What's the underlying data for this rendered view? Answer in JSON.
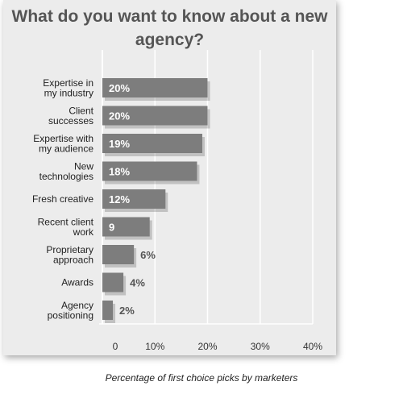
{
  "chart_data": {
    "type": "bar",
    "orientation": "horizontal",
    "title": "What do you want to know about a new agency?",
    "caption": "Percentage of first choice picks by marketers",
    "categories": [
      [
        "Expertise in",
        "my industry"
      ],
      [
        "Client",
        "successes"
      ],
      [
        "Expertise with",
        "my audience"
      ],
      [
        "New",
        "technologies"
      ],
      [
        "Fresh creative"
      ],
      [
        "Recent client",
        "work"
      ],
      [
        "Proprietary",
        "approach"
      ],
      [
        "Awards"
      ],
      [
        "Agency",
        "positioning"
      ]
    ],
    "values": [
      20,
      20,
      19,
      18,
      12,
      9,
      6,
      4,
      2
    ],
    "data_labels": [
      "20%",
      "20%",
      "19%",
      "18%",
      "12%",
      "9",
      "6%",
      "4%",
      "2%"
    ],
    "xlim": [
      0,
      40
    ],
    "xticks": [
      0,
      10,
      20,
      30,
      40
    ],
    "xtick_labels": [
      "0",
      "10%",
      "20%",
      "30%",
      "40%"
    ],
    "grid": "vertical",
    "colors": {
      "bar": "#7d7d7d",
      "background": "#ececec",
      "grid": "#ffffff"
    }
  }
}
